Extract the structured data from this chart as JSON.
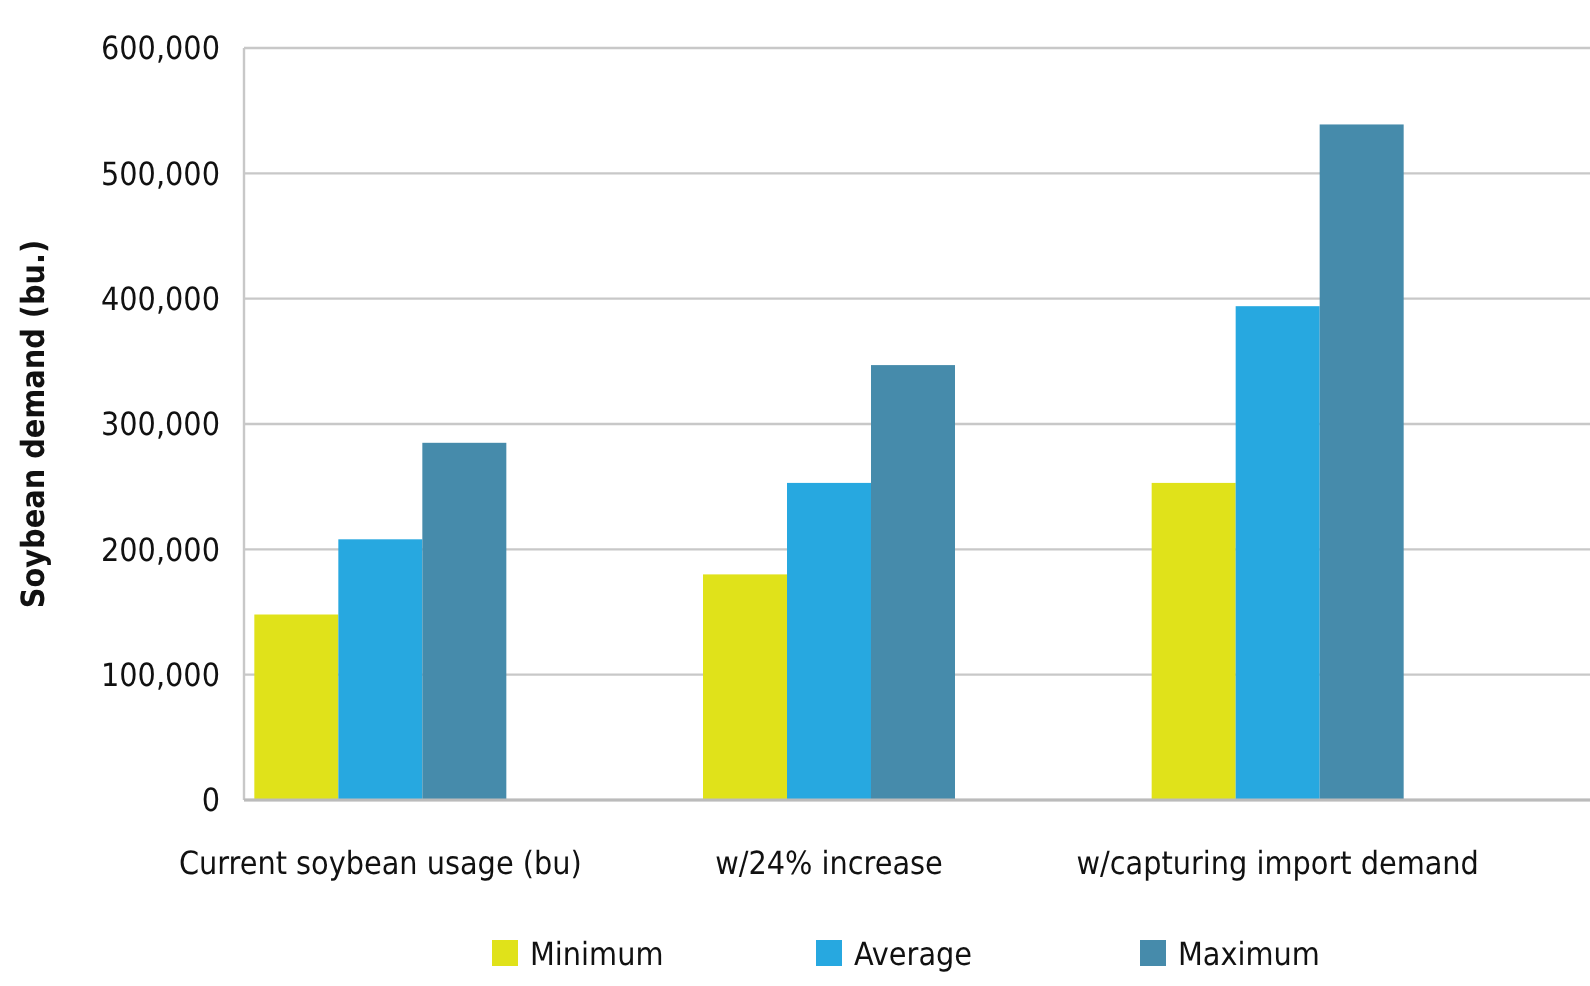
{
  "chart_data": {
    "type": "bar",
    "ylabel": "Soybean demand (bu.)",
    "categories": [
      "Current soybean usage (bu)",
      "w/24% increase",
      "w/capturing import demand"
    ],
    "series": [
      {
        "name": "Minimum",
        "color": "#e0e21a",
        "values": [
          148000,
          180000,
          253000
        ]
      },
      {
        "name": "Average",
        "color": "#27a8e0",
        "values": [
          208000,
          253000,
          394000
        ]
      },
      {
        "name": "Maximum",
        "color": "#468bab",
        "values": [
          285000,
          347000,
          539000
        ]
      }
    ],
    "ylim": [
      0,
      600000
    ],
    "yticks": [
      {
        "value": 0,
        "label": "0"
      },
      {
        "value": 100000,
        "label": "100,000"
      },
      {
        "value": 200000,
        "label": "200,000"
      },
      {
        "value": 300000,
        "label": "300,000"
      },
      {
        "value": 400000,
        "label": "400,000"
      },
      {
        "value": 500000,
        "label": "500,000"
      },
      {
        "value": 600000,
        "label": "600,000"
      }
    ],
    "grid": "y",
    "legend": "bottom"
  }
}
